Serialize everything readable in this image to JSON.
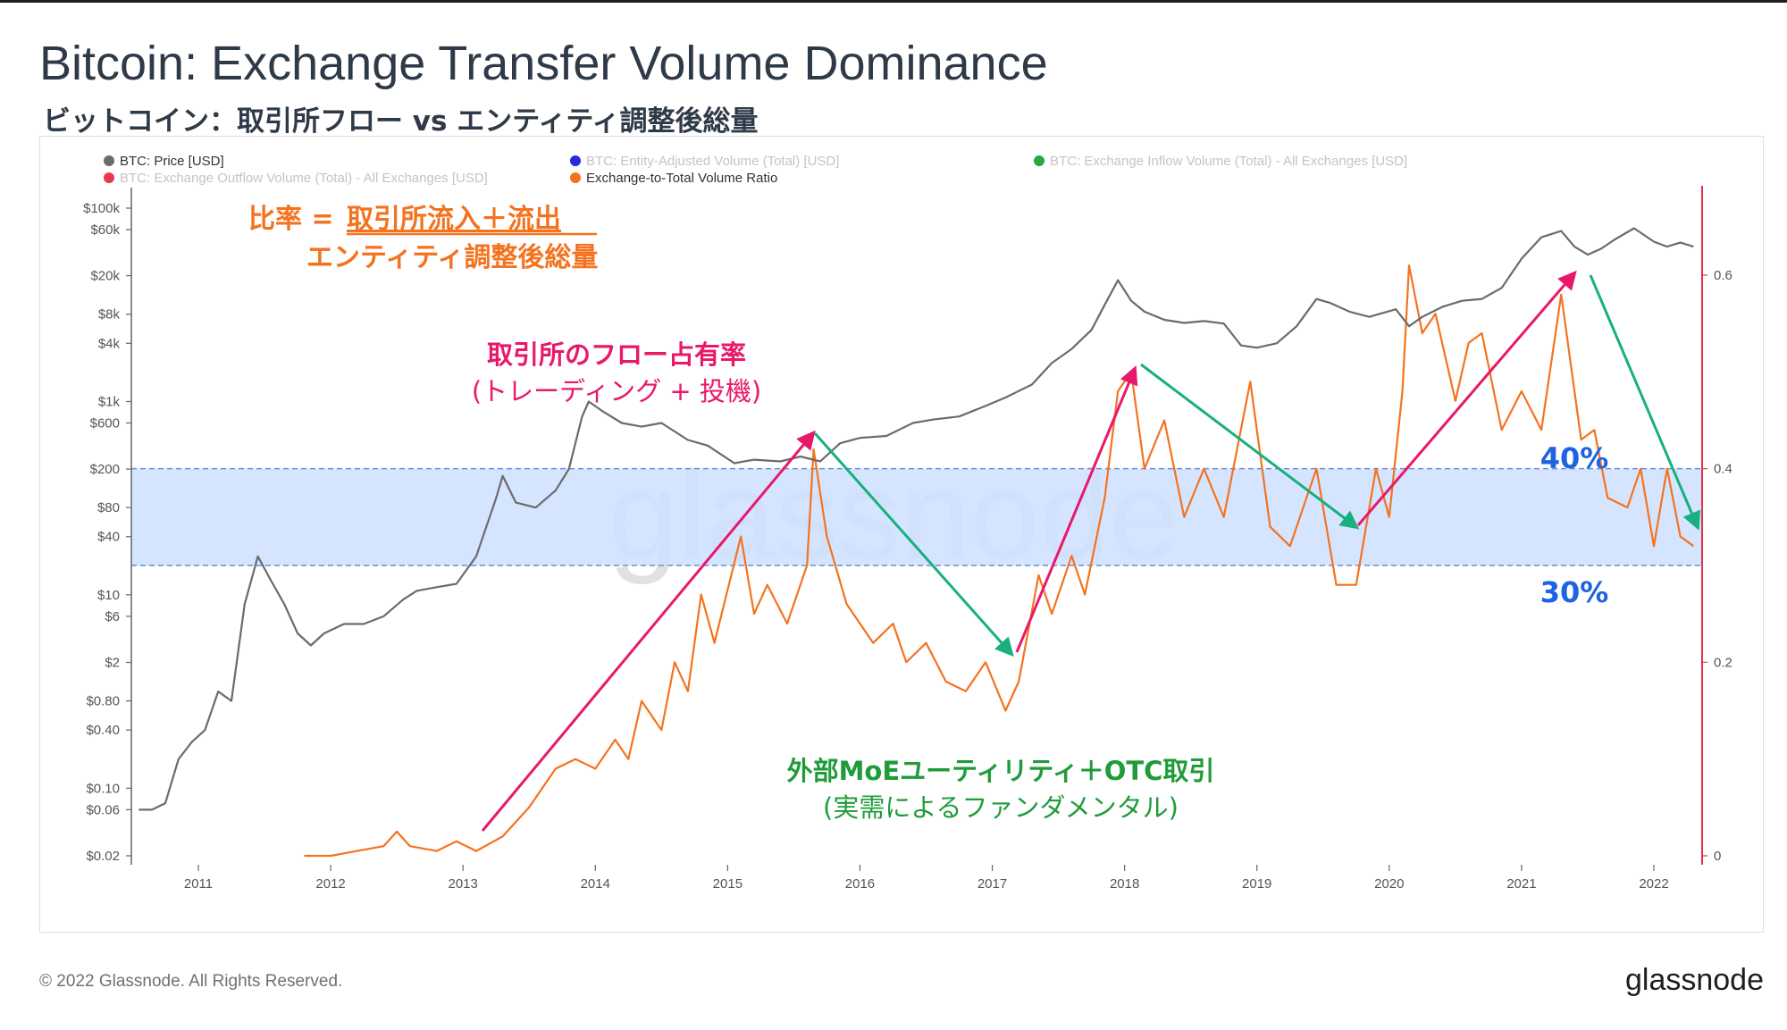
{
  "header": {
    "title": "Bitcoin: Exchange Transfer Volume Dominance",
    "subtitle": "ビットコイン：取引所フロー vs エンティティ調整後総量"
  },
  "footer": {
    "copyright": "© 2022 Glassnode. All Rights Reserved.",
    "logo": "glassnode"
  },
  "watermark": "glassnode",
  "colors": {
    "price": "#6b6b6b",
    "ratio": "#f4731f",
    "entity": "#2a2ad8",
    "inflow": "#27a845",
    "outflow": "#e8384f",
    "band_fill": "#cfe0ff",
    "band_stroke": "#6b8fd6",
    "pink_arrow": "#e8186a",
    "green_arrow": "#17b07e",
    "orange_text": "#f4731f",
    "pink_text": "#e8186a",
    "green_text": "#1f9c3a",
    "blue_text": "#1e63e0",
    "right_axis": "#e03344"
  },
  "annotations": {
    "ratio_formula_label": "比率 = ",
    "ratio_formula_numerator": "取引所流入＋流出",
    "ratio_formula_denominator": "エンティティ調整後総量",
    "exchange_share_line1": "取引所のフロー占有率",
    "exchange_share_line2": "(トレーディング + 投機)",
    "fundamentals_line1": "外部MoEユーティリティ＋OTC取引",
    "fundamentals_line2": "(実需によるファンダメンタル)",
    "band_upper_label": "40%",
    "band_lower_label": "30%"
  },
  "chart_data": {
    "type": "line",
    "legend": [
      {
        "name": "BTC: Price [USD]",
        "color": "#6b6b6b",
        "active": true
      },
      {
        "name": "BTC: Entity-Adjusted Volume (Total) [USD]",
        "color": "#2a2ad8",
        "active": false
      },
      {
        "name": "BTC: Exchange Inflow Volume (Total) - All Exchanges [USD]",
        "color": "#27a845",
        "active": false
      },
      {
        "name": "BTC: Exchange Outflow Volume (Total) - All Exchanges [USD]",
        "color": "#e8384f",
        "active": false
      },
      {
        "name": "Exchange-to-Total Volume Ratio",
        "color": "#f4731f",
        "active": true
      }
    ],
    "legend_placement": "top-left",
    "x_ticks": [
      "2011",
      "2012",
      "2013",
      "2014",
      "2015",
      "2016",
      "2017",
      "2018",
      "2019",
      "2020",
      "2021",
      "2022"
    ],
    "xlim": [
      2010.5,
      2022.35
    ],
    "left_axis": {
      "scale": "log",
      "ticks": [
        {
          "label": "$100k",
          "value": 100000
        },
        {
          "label": "$60k",
          "value": 60000
        },
        {
          "label": "$20k",
          "value": 20000
        },
        {
          "label": "$8k",
          "value": 8000
        },
        {
          "label": "$4k",
          "value": 4000
        },
        {
          "label": "$1k",
          "value": 1000
        },
        {
          "label": "$600",
          "value": 600
        },
        {
          "label": "$200",
          "value": 200
        },
        {
          "label": "$80",
          "value": 80
        },
        {
          "label": "$40",
          "value": 40
        },
        {
          "label": "$10",
          "value": 10
        },
        {
          "label": "$6",
          "value": 6
        },
        {
          "label": "$2",
          "value": 2
        },
        {
          "label": "$0.80",
          "value": 0.8
        },
        {
          "label": "$0.40",
          "value": 0.4
        },
        {
          "label": "$0.10",
          "value": 0.1
        },
        {
          "label": "$0.06",
          "value": 0.06
        },
        {
          "label": "$0.02",
          "value": 0.02
        }
      ],
      "ylim": [
        0.02,
        160000
      ]
    },
    "right_axis": {
      "ticks": [
        {
          "label": "0.6",
          "value": 0.6
        },
        {
          "label": "0.4",
          "value": 0.4
        },
        {
          "label": "0.2",
          "value": 0.2
        },
        {
          "label": "0",
          "value": 0
        }
      ],
      "ylim": [
        0,
        0.69
      ]
    },
    "band": {
      "from": 0.3,
      "to": 0.4
    },
    "grid": false,
    "price_series": {
      "name": "BTC: Price [USD]",
      "points": [
        [
          2010.55,
          0.06
        ],
        [
          2010.65,
          0.06
        ],
        [
          2010.75,
          0.07
        ],
        [
          2010.85,
          0.2
        ],
        [
          2010.95,
          0.3
        ],
        [
          2011.05,
          0.4
        ],
        [
          2011.15,
          1.0
        ],
        [
          2011.25,
          0.8
        ],
        [
          2011.35,
          8
        ],
        [
          2011.45,
          25
        ],
        [
          2011.55,
          14
        ],
        [
          2011.65,
          8
        ],
        [
          2011.75,
          4
        ],
        [
          2011.85,
          3
        ],
        [
          2011.95,
          4
        ],
        [
          2012.1,
          5
        ],
        [
          2012.25,
          5
        ],
        [
          2012.4,
          6
        ],
        [
          2012.55,
          9
        ],
        [
          2012.65,
          11
        ],
        [
          2012.8,
          12
        ],
        [
          2012.95,
          13
        ],
        [
          2013.1,
          25
        ],
        [
          2013.25,
          100
        ],
        [
          2013.3,
          170
        ],
        [
          2013.4,
          90
        ],
        [
          2013.55,
          80
        ],
        [
          2013.7,
          120
        ],
        [
          2013.8,
          200
        ],
        [
          2013.9,
          700
        ],
        [
          2013.95,
          1000
        ],
        [
          2014.05,
          800
        ],
        [
          2014.2,
          600
        ],
        [
          2014.35,
          550
        ],
        [
          2014.5,
          600
        ],
        [
          2014.7,
          400
        ],
        [
          2014.85,
          350
        ],
        [
          2015.05,
          230
        ],
        [
          2015.2,
          250
        ],
        [
          2015.4,
          240
        ],
        [
          2015.55,
          270
        ],
        [
          2015.7,
          240
        ],
        [
          2015.85,
          370
        ],
        [
          2016.0,
          420
        ],
        [
          2016.2,
          440
        ],
        [
          2016.4,
          600
        ],
        [
          2016.55,
          650
        ],
        [
          2016.75,
          700
        ],
        [
          2016.95,
          900
        ],
        [
          2017.1,
          1100
        ],
        [
          2017.3,
          1500
        ],
        [
          2017.45,
          2500
        ],
        [
          2017.6,
          3500
        ],
        [
          2017.75,
          5500
        ],
        [
          2017.85,
          10000
        ],
        [
          2017.95,
          18000
        ],
        [
          2018.05,
          11000
        ],
        [
          2018.15,
          8500
        ],
        [
          2018.3,
          7000
        ],
        [
          2018.45,
          6500
        ],
        [
          2018.6,
          6800
        ],
        [
          2018.75,
          6400
        ],
        [
          2018.88,
          3800
        ],
        [
          2019.0,
          3600
        ],
        [
          2019.15,
          4000
        ],
        [
          2019.3,
          6000
        ],
        [
          2019.45,
          11500
        ],
        [
          2019.55,
          10500
        ],
        [
          2019.7,
          8500
        ],
        [
          2019.85,
          7500
        ],
        [
          2020.05,
          9000
        ],
        [
          2020.15,
          6000
        ],
        [
          2020.25,
          7500
        ],
        [
          2020.4,
          9500
        ],
        [
          2020.55,
          11000
        ],
        [
          2020.7,
          11500
        ],
        [
          2020.85,
          15000
        ],
        [
          2021.0,
          30000
        ],
        [
          2021.15,
          50000
        ],
        [
          2021.3,
          58000
        ],
        [
          2021.4,
          40000
        ],
        [
          2021.5,
          33000
        ],
        [
          2021.6,
          38000
        ],
        [
          2021.7,
          47000
        ],
        [
          2021.85,
          62000
        ],
        [
          2022.0,
          45000
        ],
        [
          2022.1,
          40000
        ],
        [
          2022.2,
          44000
        ],
        [
          2022.3,
          40000
        ]
      ]
    },
    "ratio_series": {
      "name": "Exchange-to-Total Volume Ratio",
      "points": [
        [
          2011.8,
          0.0
        ],
        [
          2012.0,
          0.0
        ],
        [
          2012.2,
          0.005
        ],
        [
          2012.4,
          0.01
        ],
        [
          2012.5,
          0.025
        ],
        [
          2012.6,
          0.01
        ],
        [
          2012.8,
          0.005
        ],
        [
          2012.95,
          0.015
        ],
        [
          2013.1,
          0.005
        ],
        [
          2013.3,
          0.02
        ],
        [
          2013.5,
          0.05
        ],
        [
          2013.7,
          0.09
        ],
        [
          2013.85,
          0.1
        ],
        [
          2014.0,
          0.09
        ],
        [
          2014.15,
          0.12
        ],
        [
          2014.25,
          0.1
        ],
        [
          2014.35,
          0.16
        ],
        [
          2014.5,
          0.13
        ],
        [
          2014.6,
          0.2
        ],
        [
          2014.7,
          0.17
        ],
        [
          2014.8,
          0.27
        ],
        [
          2014.9,
          0.22
        ],
        [
          2015.1,
          0.33
        ],
        [
          2015.2,
          0.25
        ],
        [
          2015.3,
          0.28
        ],
        [
          2015.45,
          0.24
        ],
        [
          2015.6,
          0.3
        ],
        [
          2015.65,
          0.42
        ],
        [
          2015.75,
          0.33
        ],
        [
          2015.9,
          0.26
        ],
        [
          2016.1,
          0.22
        ],
        [
          2016.25,
          0.24
        ],
        [
          2016.35,
          0.2
        ],
        [
          2016.5,
          0.22
        ],
        [
          2016.65,
          0.18
        ],
        [
          2016.8,
          0.17
        ],
        [
          2016.95,
          0.2
        ],
        [
          2017.1,
          0.15
        ],
        [
          2017.2,
          0.18
        ],
        [
          2017.35,
          0.29
        ],
        [
          2017.45,
          0.25
        ],
        [
          2017.6,
          0.31
        ],
        [
          2017.7,
          0.27
        ],
        [
          2017.85,
          0.37
        ],
        [
          2017.95,
          0.48
        ],
        [
          2018.05,
          0.5
        ],
        [
          2018.15,
          0.4
        ],
        [
          2018.3,
          0.45
        ],
        [
          2018.45,
          0.35
        ],
        [
          2018.6,
          0.4
        ],
        [
          2018.75,
          0.35
        ],
        [
          2018.95,
          0.49
        ],
        [
          2019.1,
          0.34
        ],
        [
          2019.25,
          0.32
        ],
        [
          2019.45,
          0.4
        ],
        [
          2019.6,
          0.28
        ],
        [
          2019.75,
          0.28
        ],
        [
          2019.9,
          0.4
        ],
        [
          2020.0,
          0.35
        ],
        [
          2020.1,
          0.48
        ],
        [
          2020.15,
          0.61
        ],
        [
          2020.25,
          0.54
        ],
        [
          2020.35,
          0.56
        ],
        [
          2020.5,
          0.47
        ],
        [
          2020.6,
          0.53
        ],
        [
          2020.7,
          0.54
        ],
        [
          2020.85,
          0.44
        ],
        [
          2021.0,
          0.48
        ],
        [
          2021.15,
          0.44
        ],
        [
          2021.3,
          0.58
        ],
        [
          2021.45,
          0.43
        ],
        [
          2021.55,
          0.44
        ],
        [
          2021.65,
          0.37
        ],
        [
          2021.8,
          0.36
        ],
        [
          2021.9,
          0.4
        ],
        [
          2022.0,
          0.32
        ],
        [
          2022.1,
          0.4
        ],
        [
          2022.2,
          0.33
        ],
        [
          2022.3,
          0.32
        ]
      ]
    }
  }
}
